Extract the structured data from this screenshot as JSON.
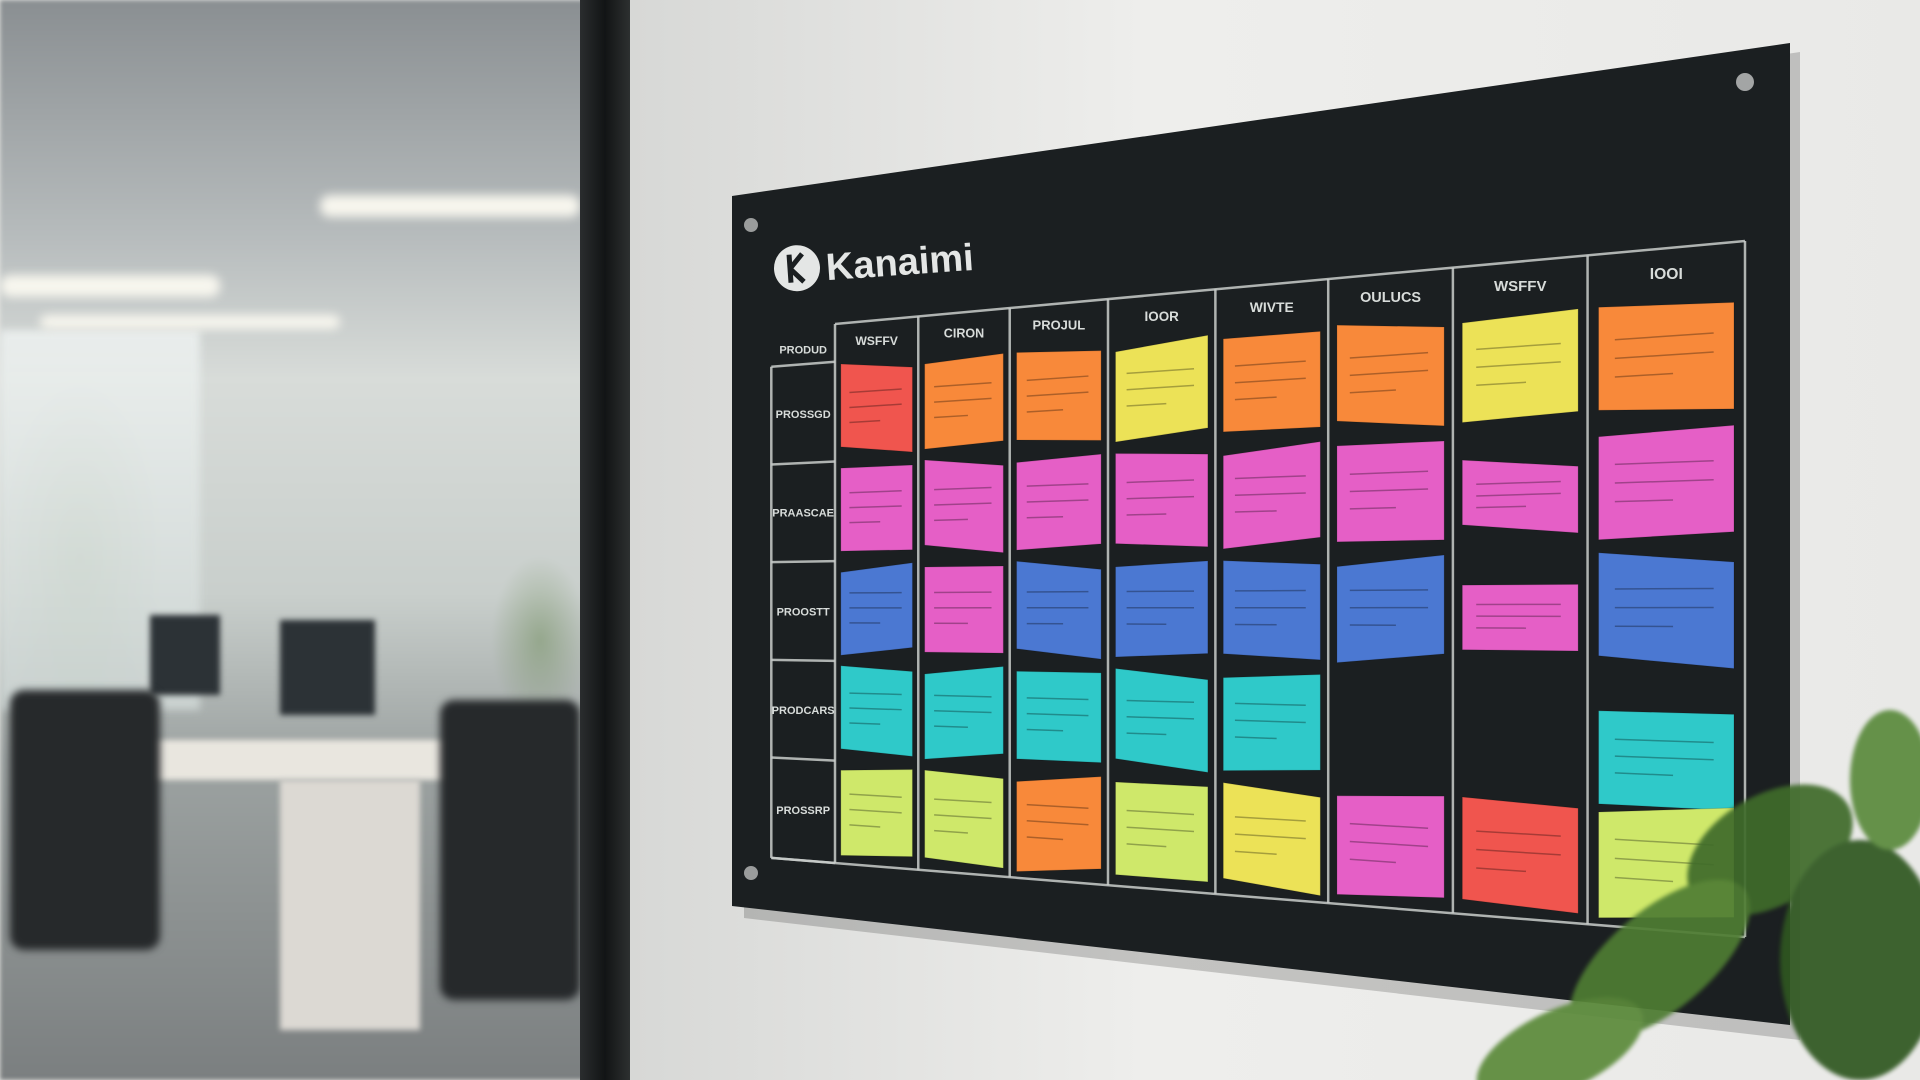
{
  "board": {
    "brand": "Kanaimi",
    "corner_label": "PRODUD",
    "columns": [
      "WSFFV",
      "CIRON",
      "PROJUL",
      "IOOR",
      "WIVTE",
      "OULUCS",
      "WSFFV",
      "IOOI"
    ],
    "rows": [
      "PROSSGD",
      "PRAASCAE",
      "PROOSTT",
      "PRODCARS",
      "PROSSRP"
    ],
    "colors": {
      "board": "#1b1f21",
      "grid_line": "#c9cdcb",
      "red": "#f0554e",
      "orange": "#f8893a",
      "yellow": "#ece257",
      "pink": "#e55fc6",
      "blue": "#4b78d2",
      "teal": "#2fc9c9",
      "lime": "#cfe86a"
    },
    "notes": [
      [
        "red",
        "orange",
        "orange",
        "yellow",
        "orange",
        "orange",
        "yellow",
        "orange"
      ],
      [
        "pink",
        "pink",
        "pink",
        "pink",
        "pink",
        "pink",
        "pink",
        "pink"
      ],
      [
        "blue",
        "pink",
        "blue",
        "blue",
        "blue",
        "blue",
        "pink",
        "blue"
      ],
      [
        "teal",
        "teal",
        "teal",
        "teal",
        "teal",
        null,
        null,
        "teal"
      ],
      [
        "lime",
        "lime",
        "orange",
        "lime",
        "yellow",
        "pink",
        "red",
        "lime"
      ]
    ]
  }
}
